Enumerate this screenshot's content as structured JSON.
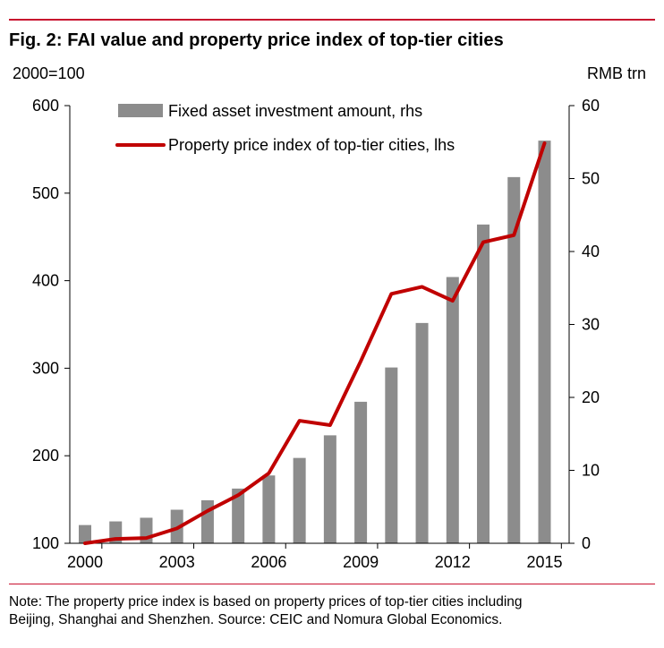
{
  "header": {
    "title": "Fig. 2: FAI value and property price index of top-tier cities",
    "left_unit": "2000=100",
    "right_unit": "RMB trn"
  },
  "note": {
    "line1": "Note: The property price index is based on property prices of top-tier cities including",
    "line2": "Beijing, Shanghai and Shenzhen. Source: CEIC and Nomura Global Economics."
  },
  "colors": {
    "rule": "#c8102e",
    "bar": "#8c8c8c",
    "line": "#c00000",
    "axis": "#000000"
  },
  "chart_data": {
    "type": "bar+line",
    "title": "Fig. 2: FAI value and property price index of top-tier cities",
    "x": [
      2000,
      2001,
      2002,
      2003,
      2004,
      2005,
      2006,
      2007,
      2008,
      2009,
      2010,
      2011,
      2012,
      2013,
      2014,
      2015
    ],
    "x_tick_labels": [
      "2000",
      "2003",
      "2006",
      "2009",
      "2012",
      "2015"
    ],
    "x_tick_values": [
      2000,
      2003,
      2006,
      2009,
      2012,
      2015
    ],
    "left_axis": {
      "label": "2000=100",
      "ylim": [
        100,
        600
      ],
      "ticks": [
        100,
        200,
        300,
        400,
        500,
        600
      ]
    },
    "right_axis": {
      "label": "RMB trn",
      "ylim": [
        0,
        60
      ],
      "ticks": [
        0,
        10,
        20,
        30,
        40,
        50,
        60
      ]
    },
    "series": [
      {
        "name": "Fixed asset investment amount, rhs",
        "type": "bar",
        "axis": "right",
        "values": [
          2.5,
          3.0,
          3.5,
          4.6,
          5.9,
          7.5,
          9.3,
          11.7,
          14.8,
          19.4,
          24.1,
          30.2,
          36.5,
          43.7,
          50.2,
          55.2
        ]
      },
      {
        "name": "Property price index of top-tier cities, lhs",
        "type": "line",
        "axis": "left",
        "values": [
          100,
          105,
          106,
          117,
          137,
          155,
          180,
          240,
          235,
          308,
          385,
          393,
          377,
          444,
          452,
          557
        ]
      }
    ],
    "legend": [
      "Fixed asset investment amount, rhs",
      "Property price index of top-tier cities, lhs"
    ],
    "legend_position": "top-left",
    "grid": false
  }
}
